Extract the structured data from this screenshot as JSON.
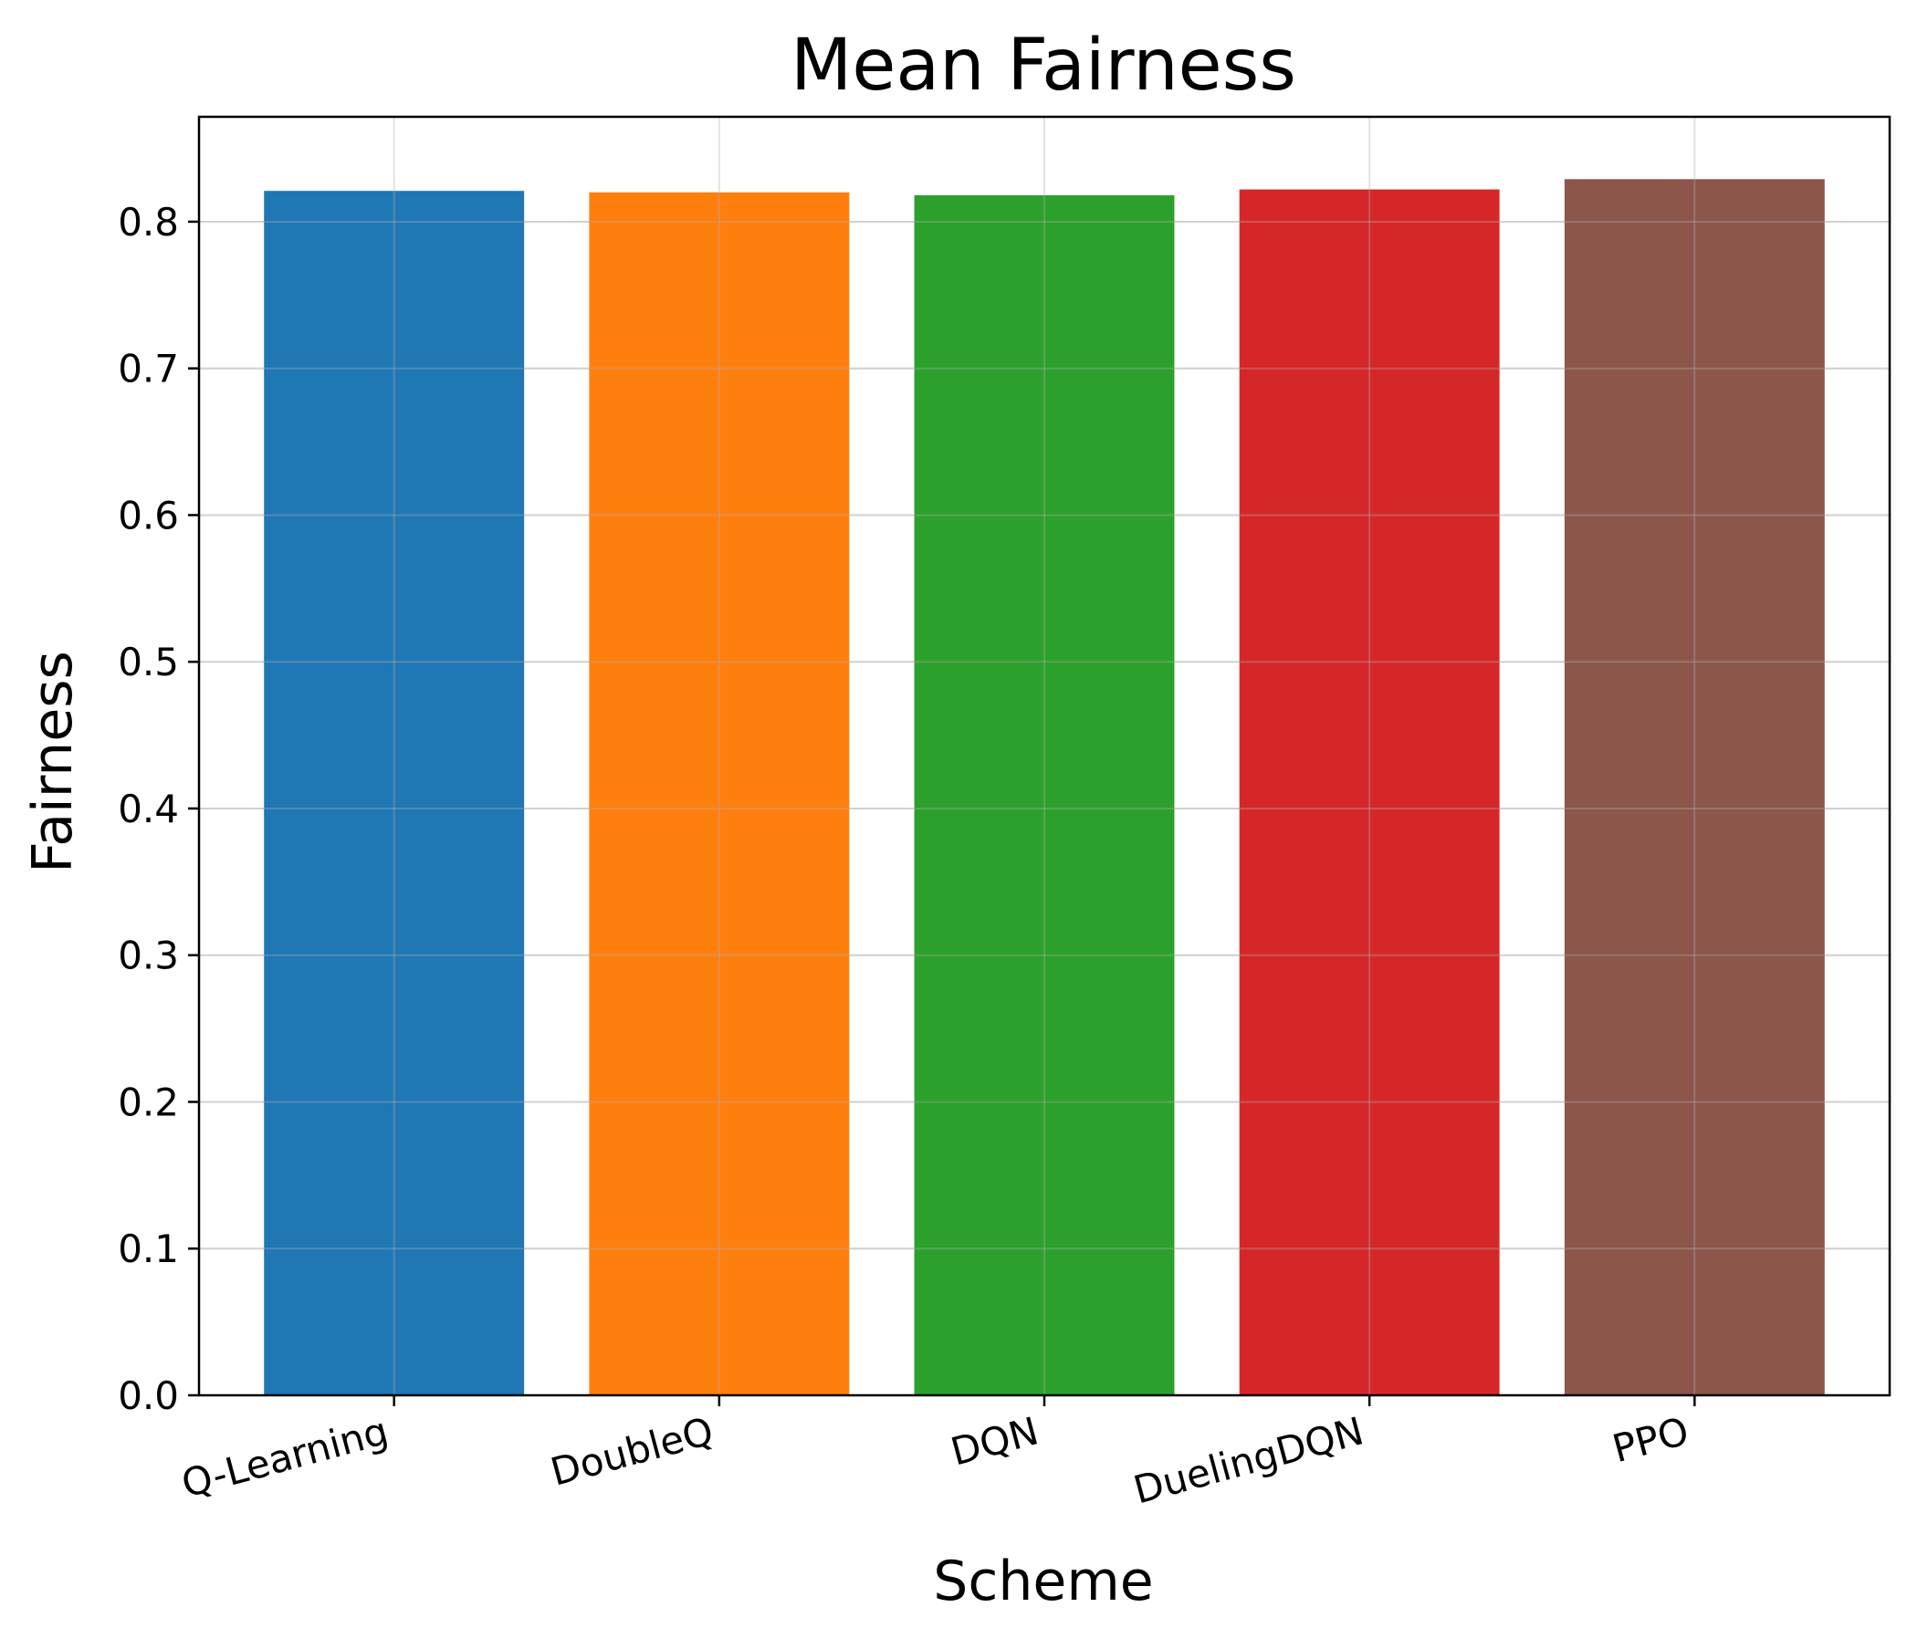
{
  "chart_data": {
    "type": "bar",
    "title": "Mean Fairness",
    "xlabel": "Scheme",
    "ylabel": "Fairness",
    "categories": [
      "Q-Learning",
      "DoubleQ",
      "DQN",
      "DuelingDQN",
      "PPO"
    ],
    "values": [
      0.821,
      0.82,
      0.818,
      0.822,
      0.829
    ],
    "colors": [
      "#1f77b4",
      "#ff7f0e",
      "#2ca02c",
      "#d62728",
      "#8c564b"
    ],
    "ylim": [
      0,
      0.8715
    ],
    "yticks": [
      0.0,
      0.1,
      0.2,
      0.3,
      0.4,
      0.5,
      0.6,
      0.7,
      0.8
    ],
    "ytick_labels": [
      "0.0",
      "0.1",
      "0.2",
      "0.3",
      "0.4",
      "0.5",
      "0.6",
      "0.7",
      "0.8"
    ],
    "grid": true,
    "legend": "none"
  }
}
